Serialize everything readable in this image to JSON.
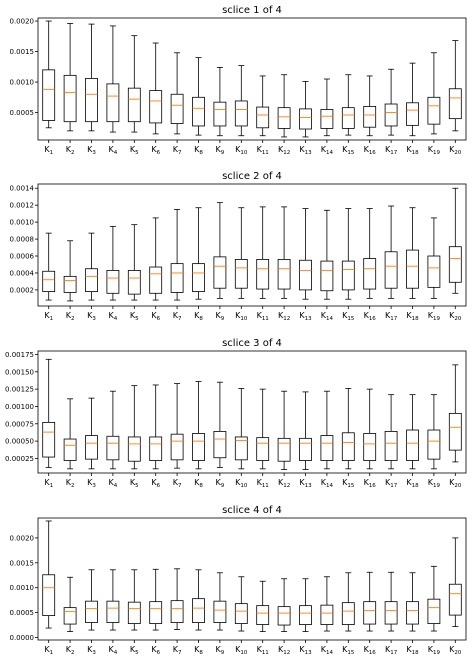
{
  "chart_data": [
    {
      "type": "boxplot",
      "title": "sclice 1 of 4",
      "ylim": [
        5e-05,
        0.00205
      ],
      "yticks": [
        0.0005,
        0.001,
        0.0015,
        0.002
      ],
      "ytick_labels": [
        "0.0005",
        "0.0010",
        "0.0015",
        "0.0020"
      ],
      "categories": [
        "K1",
        "K2",
        "K3",
        "K4",
        "K5",
        "K6",
        "K7",
        "K8",
        "K9",
        "K10",
        "K11",
        "K12",
        "K13",
        "K14",
        "K15",
        "K16",
        "K17",
        "K18",
        "K19",
        "K20"
      ],
      "boxes": [
        {
          "whislo": 0.00025,
          "q1": 0.00037,
          "med": 0.00088,
          "q3": 0.0012,
          "whishi": 0.002
        },
        {
          "whislo": 0.0002,
          "q1": 0.00035,
          "med": 0.00083,
          "q3": 0.00111,
          "whishi": 0.00196
        },
        {
          "whislo": 0.0002,
          "q1": 0.00035,
          "med": 0.0008,
          "q3": 0.00106,
          "whishi": 0.00195
        },
        {
          "whislo": 0.00018,
          "q1": 0.00035,
          "med": 0.00077,
          "q3": 0.00097,
          "whishi": 0.00192
        },
        {
          "whislo": 0.00018,
          "q1": 0.00035,
          "med": 0.00072,
          "q3": 0.0009,
          "whishi": 0.00176
        },
        {
          "whislo": 0.00015,
          "q1": 0.00033,
          "med": 0.00069,
          "q3": 0.00086,
          "whishi": 0.00164
        },
        {
          "whislo": 0.00015,
          "q1": 0.00032,
          "med": 0.00062,
          "q3": 0.0008,
          "whishi": 0.00148
        },
        {
          "whislo": 0.00013,
          "q1": 0.00028,
          "med": 0.00057,
          "q3": 0.00075,
          "whishi": 0.0014
        },
        {
          "whislo": 0.00012,
          "q1": 0.00028,
          "med": 0.00055,
          "q3": 0.00067,
          "whishi": 0.00124
        },
        {
          "whislo": 0.00012,
          "q1": 0.00028,
          "med": 0.00055,
          "q3": 0.00069,
          "whishi": 0.00127
        },
        {
          "whislo": 0.00012,
          "q1": 0.00025,
          "med": 0.00046,
          "q3": 0.00059,
          "whishi": 0.0011
        },
        {
          "whislo": 0.0001,
          "q1": 0.00024,
          "med": 0.00043,
          "q3": 0.00058,
          "whishi": 0.00112
        },
        {
          "whislo": 0.0001,
          "q1": 0.00023,
          "med": 0.00042,
          "q3": 0.00056,
          "whishi": 0.00101
        },
        {
          "whislo": 0.00012,
          "q1": 0.00024,
          "med": 0.00044,
          "q3": 0.00055,
          "whishi": 0.00105
        },
        {
          "whislo": 0.00013,
          "q1": 0.00024,
          "med": 0.00046,
          "q3": 0.00058,
          "whishi": 0.00112
        },
        {
          "whislo": 0.00012,
          "q1": 0.00026,
          "med": 0.00046,
          "q3": 0.0006,
          "whishi": 0.0011
        },
        {
          "whislo": 0.00013,
          "q1": 0.00028,
          "med": 0.0005,
          "q3": 0.00064,
          "whishi": 0.00121
        },
        {
          "whislo": 0.00012,
          "q1": 0.00029,
          "med": 0.00054,
          "q3": 0.00066,
          "whishi": 0.00131
        },
        {
          "whislo": 0.00015,
          "q1": 0.00031,
          "med": 0.00061,
          "q3": 0.00075,
          "whishi": 0.00148
        },
        {
          "whislo": 0.0002,
          "q1": 0.0004,
          "med": 0.00074,
          "q3": 0.00089,
          "whishi": 0.00168
        }
      ]
    },
    {
      "type": "boxplot",
      "title": "sclice 2 of 4",
      "ylim": [
        1e-05,
        0.00145
      ],
      "yticks": [
        0.0002,
        0.0004,
        0.0006,
        0.0008,
        0.001,
        0.0012,
        0.0014
      ],
      "ytick_labels": [
        "0.0002",
        "0.0004",
        "0.0006",
        "0.0008",
        "0.0010",
        "0.0012",
        "0.0014"
      ],
      "categories": [
        "K1",
        "K2",
        "K3",
        "K4",
        "K5",
        "K6",
        "K7",
        "K8",
        "K9",
        "K10",
        "K11",
        "K12",
        "K13",
        "K14",
        "K15",
        "K16",
        "K17",
        "K18",
        "K19",
        "K20"
      ],
      "boxes": [
        {
          "whislo": 8e-05,
          "q1": 0.00018,
          "med": 0.00032,
          "q3": 0.00042,
          "whishi": 0.00087
        },
        {
          "whislo": 7e-05,
          "q1": 0.00017,
          "med": 0.00031,
          "q3": 0.00036,
          "whishi": 0.00078
        },
        {
          "whislo": 8e-05,
          "q1": 0.00018,
          "med": 0.00036,
          "q3": 0.00045,
          "whishi": 0.00087
        },
        {
          "whislo": 8e-05,
          "q1": 0.00016,
          "med": 0.00034,
          "q3": 0.00043,
          "whishi": 0.00095
        },
        {
          "whislo": 8e-05,
          "q1": 0.00015,
          "med": 0.00034,
          "q3": 0.00043,
          "whishi": 0.00097
        },
        {
          "whislo": 8e-05,
          "q1": 0.00016,
          "med": 0.00039,
          "q3": 0.00047,
          "whishi": 0.00105
        },
        {
          "whislo": 8e-05,
          "q1": 0.00017,
          "med": 0.0004,
          "q3": 0.00051,
          "whishi": 0.00115
        },
        {
          "whislo": 9e-05,
          "q1": 0.00018,
          "med": 0.0004,
          "q3": 0.00051,
          "whishi": 0.00117
        },
        {
          "whislo": 0.0001,
          "q1": 0.00022,
          "med": 0.00048,
          "q3": 0.00059,
          "whishi": 0.00123
        },
        {
          "whislo": 0.0001,
          "q1": 0.00022,
          "med": 0.00046,
          "q3": 0.00056,
          "whishi": 0.00117
        },
        {
          "whislo": 0.0001,
          "q1": 0.00021,
          "med": 0.00045,
          "q3": 0.00056,
          "whishi": 0.00118
        },
        {
          "whislo": 0.0001,
          "q1": 0.00021,
          "med": 0.00045,
          "q3": 0.00056,
          "whishi": 0.00118
        },
        {
          "whislo": 9e-05,
          "q1": 0.0002,
          "med": 0.00043,
          "q3": 0.00055,
          "whishi": 0.00116
        },
        {
          "whislo": 9e-05,
          "q1": 0.00019,
          "med": 0.00043,
          "q3": 0.00054,
          "whishi": 0.00114
        },
        {
          "whislo": 9e-05,
          "q1": 0.0002,
          "med": 0.00044,
          "q3": 0.00054,
          "whishi": 0.00116
        },
        {
          "whislo": 0.0001,
          "q1": 0.00021,
          "med": 0.00045,
          "q3": 0.00057,
          "whishi": 0.00116
        },
        {
          "whislo": 0.0001,
          "q1": 0.00022,
          "med": 0.00048,
          "q3": 0.00065,
          "whishi": 0.00119
        },
        {
          "whislo": 0.0001,
          "q1": 0.00022,
          "med": 0.00048,
          "q3": 0.00067,
          "whishi": 0.00117
        },
        {
          "whislo": 0.0001,
          "q1": 0.00023,
          "med": 0.00046,
          "q3": 0.0006,
          "whishi": 0.00105
        },
        {
          "whislo": 0.00016,
          "q1": 0.00029,
          "med": 0.00057,
          "q3": 0.00071,
          "whishi": 0.0014
        }
      ]
    },
    {
      "type": "boxplot",
      "title": "sclice 3 of 4",
      "ylim": [
        4e-05,
        0.0018
      ],
      "yticks": [
        0.00025,
        0.0005,
        0.00075,
        0.001,
        0.00125,
        0.0015,
        0.00175
      ],
      "ytick_labels": [
        "0.00025",
        "0.00050",
        "0.00075",
        "0.00100",
        "0.00125",
        "0.00150",
        "0.00175"
      ],
      "categories": [
        "K1",
        "K2",
        "K3",
        "K4",
        "K5",
        "K6",
        "K7",
        "K8",
        "K9",
        "K10",
        "K11",
        "K12",
        "K13",
        "K14",
        "K15",
        "K16",
        "K17",
        "K18",
        "K19",
        "K20"
      ],
      "boxes": [
        {
          "whislo": 0.00012,
          "q1": 0.00027,
          "med": 0.00063,
          "q3": 0.00077,
          "whishi": 0.00168
        },
        {
          "whislo": 0.0001,
          "q1": 0.00022,
          "med": 0.00044,
          "q3": 0.00053,
          "whishi": 0.00111
        },
        {
          "whislo": 0.0001,
          "q1": 0.00024,
          "med": 0.00047,
          "q3": 0.00058,
          "whishi": 0.00112
        },
        {
          "whislo": 0.0001,
          "q1": 0.00023,
          "med": 0.00047,
          "q3": 0.00057,
          "whishi": 0.00122
        },
        {
          "whislo": 0.0001,
          "q1": 0.00021,
          "med": 0.00046,
          "q3": 0.00056,
          "whishi": 0.0013
        },
        {
          "whislo": 0.0001,
          "q1": 0.00022,
          "med": 0.00046,
          "q3": 0.00056,
          "whishi": 0.00131
        },
        {
          "whislo": 0.00011,
          "q1": 0.00023,
          "med": 0.0005,
          "q3": 0.0006,
          "whishi": 0.00133
        },
        {
          "whislo": 0.0001,
          "q1": 0.00022,
          "med": 0.0005,
          "q3": 0.00061,
          "whishi": 0.00136
        },
        {
          "whislo": 0.00012,
          "q1": 0.00026,
          "med": 0.00053,
          "q3": 0.00064,
          "whishi": 0.00135
        },
        {
          "whislo": 0.0001,
          "q1": 0.00023,
          "med": 0.00051,
          "q3": 0.00056,
          "whishi": 0.00126
        },
        {
          "whislo": 0.0001,
          "q1": 0.00022,
          "med": 0.00047,
          "q3": 0.00055,
          "whishi": 0.00125
        },
        {
          "whislo": 9e-05,
          "q1": 0.00021,
          "med": 0.00047,
          "q3": 0.00054,
          "whishi": 0.00122
        },
        {
          "whislo": 9e-05,
          "q1": 0.00022,
          "med": 0.00047,
          "q3": 0.00054,
          "whishi": 0.00121
        },
        {
          "whislo": 0.0001,
          "q1": 0.00022,
          "med": 0.00047,
          "q3": 0.00058,
          "whishi": 0.00122
        },
        {
          "whislo": 0.0001,
          "q1": 0.00022,
          "med": 0.00048,
          "q3": 0.00062,
          "whishi": 0.00126
        },
        {
          "whislo": 0.0001,
          "q1": 0.00022,
          "med": 0.00046,
          "q3": 0.00061,
          "whishi": 0.00125
        },
        {
          "whislo": 0.0001,
          "q1": 0.00022,
          "med": 0.00047,
          "q3": 0.00064,
          "whishi": 0.00117
        },
        {
          "whislo": 0.0001,
          "q1": 0.00022,
          "med": 0.00047,
          "q3": 0.00066,
          "whishi": 0.00117
        },
        {
          "whislo": 0.0001,
          "q1": 0.00024,
          "med": 0.0005,
          "q3": 0.00066,
          "whishi": 0.00117
        },
        {
          "whislo": 0.0002,
          "q1": 0.00037,
          "med": 0.0007,
          "q3": 0.0009,
          "whishi": 0.0016
        }
      ]
    },
    {
      "type": "boxplot",
      "title": "sclice 4 of 4",
      "ylim": [
        -5e-05,
        0.0024
      ],
      "yticks": [
        0.0,
        0.0005,
        0.001,
        0.0015,
        0.002
      ],
      "ytick_labels": [
        "0.0000",
        "0.0005",
        "0.0010",
        "0.0015",
        "0.0020"
      ],
      "categories": [
        "K1",
        "K2",
        "K3",
        "K4",
        "K5",
        "K6",
        "K7",
        "K8",
        "K9",
        "K10",
        "K11",
        "K12",
        "K13",
        "K14",
        "K15",
        "K16",
        "K17",
        "K18",
        "K19",
        "K20"
      ],
      "boxes": [
        {
          "whislo": 0.00019,
          "q1": 0.00044,
          "med": 0.001,
          "q3": 0.00126,
          "whishi": 0.00234
        },
        {
          "whislo": 0.00012,
          "q1": 0.00027,
          "med": 0.00052,
          "q3": 0.0006,
          "whishi": 0.00121
        },
        {
          "whislo": 0.00015,
          "q1": 0.0003,
          "med": 0.00058,
          "q3": 0.00073,
          "whishi": 0.00136
        },
        {
          "whislo": 0.00015,
          "q1": 0.0003,
          "med": 0.00059,
          "q3": 0.00073,
          "whishi": 0.00136
        },
        {
          "whislo": 0.00015,
          "q1": 0.00028,
          "med": 0.00058,
          "q3": 0.00071,
          "whishi": 0.00136
        },
        {
          "whislo": 0.00015,
          "q1": 0.00028,
          "med": 0.00058,
          "q3": 0.00072,
          "whishi": 0.00137
        },
        {
          "whislo": 0.00016,
          "q1": 0.0003,
          "med": 0.00058,
          "q3": 0.00074,
          "whishi": 0.00138
        },
        {
          "whislo": 0.00015,
          "q1": 0.0003,
          "med": 0.00059,
          "q3": 0.00078,
          "whishi": 0.00136
        },
        {
          "whislo": 0.00015,
          "q1": 0.0003,
          "med": 0.00055,
          "q3": 0.00073,
          "whishi": 0.0013
        },
        {
          "whislo": 0.00013,
          "q1": 0.00028,
          "med": 0.00053,
          "q3": 0.00068,
          "whishi": 0.00122
        },
        {
          "whislo": 0.00012,
          "q1": 0.00026,
          "med": 0.00049,
          "q3": 0.00064,
          "whishi": 0.00113
        },
        {
          "whislo": 0.00012,
          "q1": 0.00025,
          "med": 0.00049,
          "q3": 0.00062,
          "whishi": 0.00118
        },
        {
          "whislo": 0.00012,
          "q1": 0.00026,
          "med": 0.00049,
          "q3": 0.00064,
          "whishi": 0.00118
        },
        {
          "whislo": 0.00013,
          "q1": 0.00026,
          "med": 0.00049,
          "q3": 0.00065,
          "whishi": 0.00122
        },
        {
          "whislo": 0.00013,
          "q1": 0.00026,
          "med": 0.00053,
          "q3": 0.0007,
          "whishi": 0.0013
        },
        {
          "whislo": 0.00013,
          "q1": 0.00027,
          "med": 0.00054,
          "q3": 0.00072,
          "whishi": 0.00131
        },
        {
          "whislo": 0.00013,
          "q1": 0.00027,
          "med": 0.00054,
          "q3": 0.00072,
          "whishi": 0.00131
        },
        {
          "whislo": 0.00013,
          "q1": 0.00027,
          "med": 0.00054,
          "q3": 0.00072,
          "whishi": 0.0013
        },
        {
          "whislo": 0.00013,
          "q1": 0.00028,
          "med": 0.0006,
          "q3": 0.00077,
          "whishi": 0.00143
        },
        {
          "whislo": 0.00022,
          "q1": 0.00045,
          "med": 0.00088,
          "q3": 0.00107,
          "whishi": 0.002
        }
      ]
    }
  ],
  "colors": {
    "box_edge": "#000000",
    "median": "#ff7f0e",
    "axes": "#000000",
    "background": "#ffffff"
  }
}
